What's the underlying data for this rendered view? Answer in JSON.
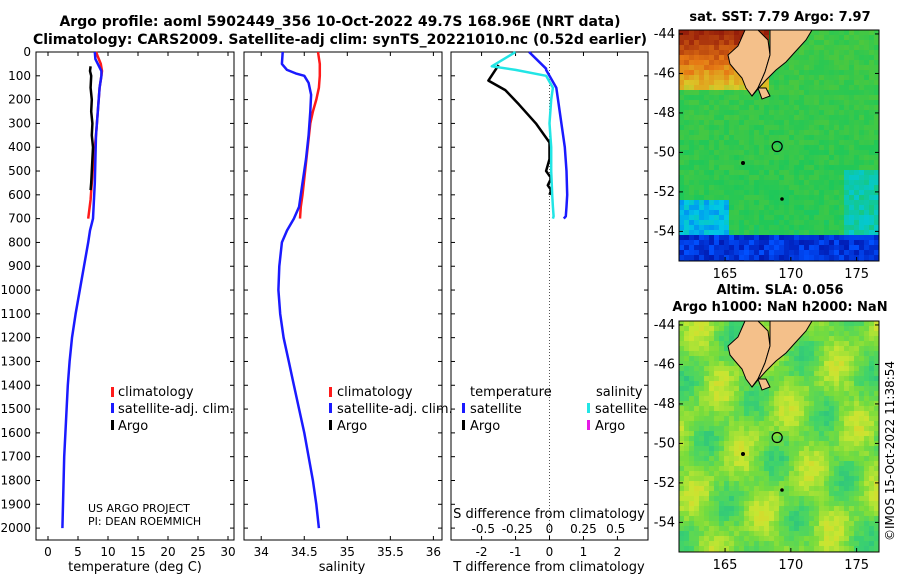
{
  "header": {
    "title_line1": "Argo profile: aoml 5902449_356 10-Oct-2022 49.7S 168.96E (NRT data)",
    "title_line2": "Climatology: CARS2009. Satellite-adj clim: synTS_20221010.nc (0.52d earlier)"
  },
  "credit": {
    "line1": "US ARGO PROJECT",
    "line2": "PI: DEAN ROEMMICH"
  },
  "watermark": "©IMOS 15-Oct-2022 11:38:54",
  "colors": {
    "climatology": "#ff1a1a",
    "satellite": "#1a1aff",
    "argo": "#000000",
    "sat_salinity": "#22e5e5",
    "argo_salinity": "#e61ae6"
  },
  "chart_data": [
    {
      "type": "line",
      "id": "temperature",
      "xlabel": "temperature (deg C)",
      "xlim": [
        -2,
        31
      ],
      "xticks": [
        0,
        5,
        10,
        15,
        20,
        25,
        30
      ],
      "ylim": [
        2050,
        0
      ],
      "yticks": [
        0,
        100,
        200,
        300,
        400,
        500,
        600,
        700,
        800,
        900,
        1000,
        1100,
        1200,
        1300,
        1400,
        1500,
        1600,
        1700,
        1800,
        1900,
        2000
      ],
      "legend": [
        "climatology",
        "satellite-adj. clim.",
        "Argo"
      ],
      "series": [
        {
          "name": "climatology",
          "color": "#ff1a1a",
          "x": [
            8.0,
            8.4,
            8.8,
            9.0,
            8.9,
            8.6,
            8.3,
            8.0,
            7.6,
            7.3,
            7.1,
            6.9,
            6.7
          ],
          "y": [
            0,
            25,
            50,
            80,
            100,
            150,
            250,
            350,
            450,
            550,
            620,
            660,
            700
          ]
        },
        {
          "name": "satellite-adj. clim.",
          "color": "#1a1aff",
          "x": [
            7.8,
            7.9,
            8.4,
            8.9,
            8.9,
            8.6,
            8.3,
            8.0,
            7.9,
            7.8,
            7.7,
            7.6,
            7.5,
            7.3,
            7.0,
            6.7,
            6.0,
            5.3,
            4.6,
            4.0,
            3.6,
            3.3,
            3.1,
            2.9,
            2.7,
            2.6,
            2.5,
            2.4
          ],
          "y": [
            0,
            30,
            55,
            80,
            100,
            150,
            250,
            350,
            450,
            550,
            600,
            650,
            700,
            720,
            750,
            800,
            900,
            1000,
            1100,
            1200,
            1300,
            1400,
            1500,
            1600,
            1700,
            1800,
            1900,
            2000
          ]
        },
        {
          "name": "Argo",
          "color": "#000000",
          "x": [
            7.1,
            7.0,
            7.2,
            7.1,
            7.3,
            7.2,
            7.4,
            7.3,
            7.5,
            7.4,
            7.3,
            7.2,
            7.1
          ],
          "y": [
            60,
            80,
            100,
            150,
            200,
            250,
            300,
            350,
            400,
            450,
            500,
            550,
            580
          ]
        }
      ]
    },
    {
      "type": "line",
      "id": "salinity",
      "xlabel": "salinity",
      "xlim": [
        33.8,
        36.1
      ],
      "xticks": [
        34,
        34.5,
        35,
        35.5,
        36
      ],
      "ylim": [
        2050,
        0
      ],
      "legend": [
        "climatology",
        "satellite-adj. clim.",
        "Argo"
      ],
      "series": [
        {
          "name": "climatology",
          "color": "#ff1a1a",
          "x": [
            34.66,
            34.67,
            34.68,
            34.68,
            34.67,
            34.64,
            34.6,
            34.57,
            34.54,
            34.51,
            34.48,
            34.46,
            34.45
          ],
          "y": [
            0,
            25,
            50,
            100,
            150,
            200,
            250,
            300,
            400,
            500,
            600,
            650,
            700
          ]
        },
        {
          "name": "satellite-adj. clim.",
          "color": "#1a1aff",
          "x": [
            34.25,
            34.24,
            34.3,
            34.4,
            34.5,
            34.55,
            34.58,
            34.57,
            34.55,
            34.52,
            34.48,
            34.44,
            34.38,
            34.3,
            34.24,
            34.21,
            34.2,
            34.22,
            34.26,
            34.32,
            34.38,
            34.44,
            34.5,
            34.55,
            34.6,
            34.64,
            34.67
          ],
          "y": [
            0,
            50,
            75,
            90,
            100,
            130,
            180,
            250,
            350,
            450,
            550,
            650,
            700,
            750,
            800,
            900,
            1000,
            1100,
            1200,
            1300,
            1400,
            1500,
            1600,
            1700,
            1800,
            1900,
            2000
          ]
        }
      ]
    },
    {
      "type": "line",
      "id": "difference",
      "xlabel": "T difference from climatology",
      "xlabel_top": "S difference from climatology",
      "xlim": [
        -2.9,
        2.9
      ],
      "xticks": [
        -2,
        -1,
        0,
        1,
        2
      ],
      "s_ticks": [
        "-0.5",
        "-0.25",
        "0",
        "0.25",
        "0.5"
      ],
      "ylim": [
        2050,
        0
      ],
      "legend_left": {
        "title": "temperature",
        "items": [
          "satellite",
          "Argo"
        ]
      },
      "legend_right": {
        "title": "salinity",
        "items": [
          "satellite",
          "Argo"
        ]
      },
      "series": [
        {
          "name": "temperature satellite",
          "color": "#1a1aff",
          "x": [
            -0.6,
            -0.1,
            -0.1,
            0.2,
            0.25,
            0.35,
            0.45,
            0.5,
            0.52,
            0.5,
            0.48,
            0.42
          ],
          "y": [
            0,
            70,
            75,
            150,
            200,
            300,
            400,
            500,
            600,
            650,
            690,
            700
          ]
        },
        {
          "name": "temperature Argo",
          "color": "#000000",
          "x": [
            -1.5,
            -1.8,
            -1.3,
            -0.9,
            -0.4,
            0.0,
            0.0,
            -0.1,
            0.05,
            -0.05,
            0.05,
            0.0
          ],
          "y": [
            55,
            120,
            160,
            220,
            300,
            380,
            450,
            500,
            530,
            560,
            580,
            600
          ]
        },
        {
          "name": "salinity satellite",
          "color": "#22e5e5",
          "x": [
            -1.0,
            -1.7,
            -1.0,
            -0.1,
            0.1,
            0.05,
            0.0,
            0.05,
            0.05,
            0.08,
            0.1,
            0.12,
            0.1
          ],
          "y": [
            0,
            60,
            75,
            100,
            150,
            200,
            300,
            400,
            500,
            600,
            650,
            690,
            700
          ]
        }
      ]
    },
    {
      "type": "heatmap",
      "id": "sst_map",
      "title": "sat. SST: 7.79 Argo: 7.97",
      "xticks": [
        "165",
        "170",
        "175"
      ],
      "yticks": [
        "-44",
        "-46",
        "-48",
        "-50",
        "-52",
        "-54"
      ],
      "xlim": [
        161.5,
        176.7
      ],
      "ylim": [
        -55.5,
        -43.8
      ],
      "argo_position": {
        "lon": 168.96,
        "lat": -49.7
      }
    },
    {
      "type": "heatmap",
      "id": "sla_map",
      "title": "Altim. SLA: 0.056",
      "subtitle": "Argo h1000: NaN h2000: NaN",
      "xticks": [
        "165",
        "170",
        "175"
      ],
      "yticks": [
        "-44",
        "-46",
        "-48",
        "-50",
        "-52",
        "-54"
      ],
      "xlim": [
        161.5,
        176.7
      ],
      "ylim": [
        -55.5,
        -43.8
      ],
      "argo_position": {
        "lon": 168.96,
        "lat": -49.7
      }
    }
  ]
}
